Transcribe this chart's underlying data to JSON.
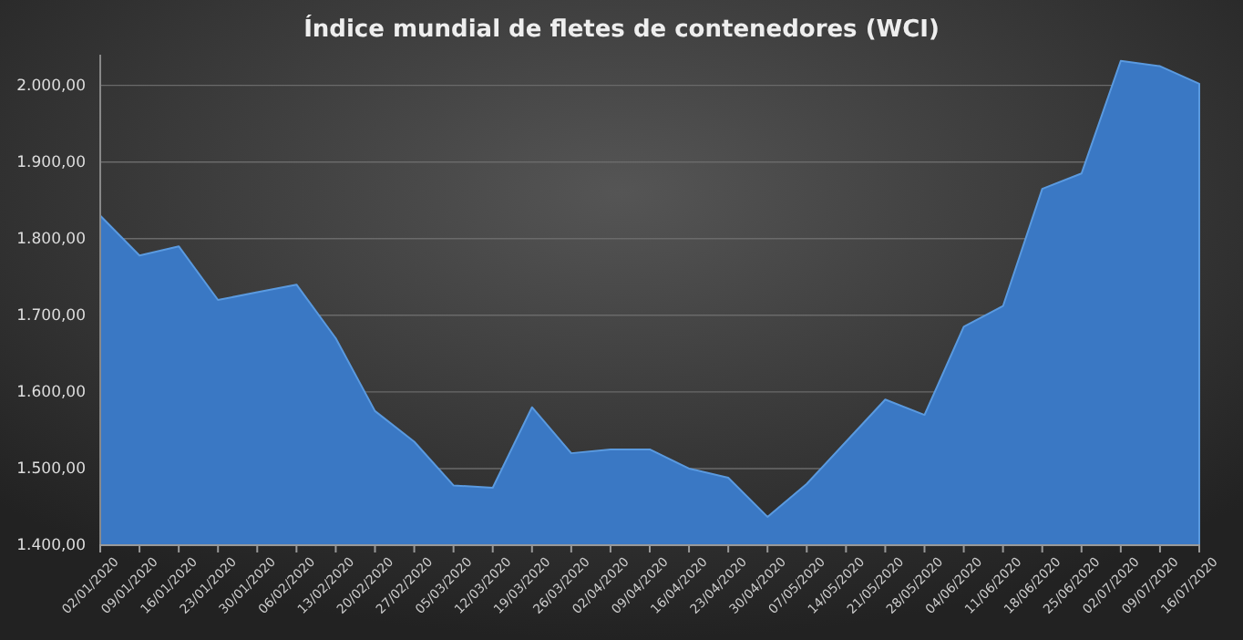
{
  "chart_data": {
    "type": "area",
    "title": "Índice mundial de fletes de contenedores (WCI)",
    "categories": [
      "02/01/2020",
      "09/01/2020",
      "16/01/2020",
      "23/01/2020",
      "30/01/2020",
      "06/02/2020",
      "13/02/2020",
      "20/02/2020",
      "27/02/2020",
      "05/03/2020",
      "12/03/2020",
      "19/03/2020",
      "26/03/2020",
      "02/04/2020",
      "09/04/2020",
      "16/04/2020",
      "23/04/2020",
      "30/04/2020",
      "07/05/2020",
      "14/05/2020",
      "21/05/2020",
      "28/05/2020",
      "04/06/2020",
      "11/06/2020",
      "18/06/2020",
      "25/06/2020",
      "02/07/2020",
      "09/07/2020",
      "16/07/2020"
    ],
    "values": [
      1830,
      1778,
      1790,
      1720,
      1730,
      1740,
      1670,
      1575,
      1535,
      1478,
      1475,
      1580,
      1520,
      1525,
      1525,
      1500,
      1488,
      1437,
      1480,
      1535,
      1590,
      1570,
      1685,
      1712,
      1865,
      1885,
      2032,
      2025,
      2002
    ],
    "color": "#3a78c4",
    "ylim": [
      1400,
      2040
    ],
    "yticks": [
      {
        "value": 1400,
        "label": "1.400,00"
      },
      {
        "value": 1500,
        "label": "1.500,00"
      },
      {
        "value": 1600,
        "label": "1.600,00"
      },
      {
        "value": 1700,
        "label": "1.700,00"
      },
      {
        "value": 1800,
        "label": "1.800,00"
      },
      {
        "value": 1900,
        "label": "1.900,00"
      },
      {
        "value": 2000,
        "label": "2.000,00"
      }
    ],
    "grid": "y"
  }
}
